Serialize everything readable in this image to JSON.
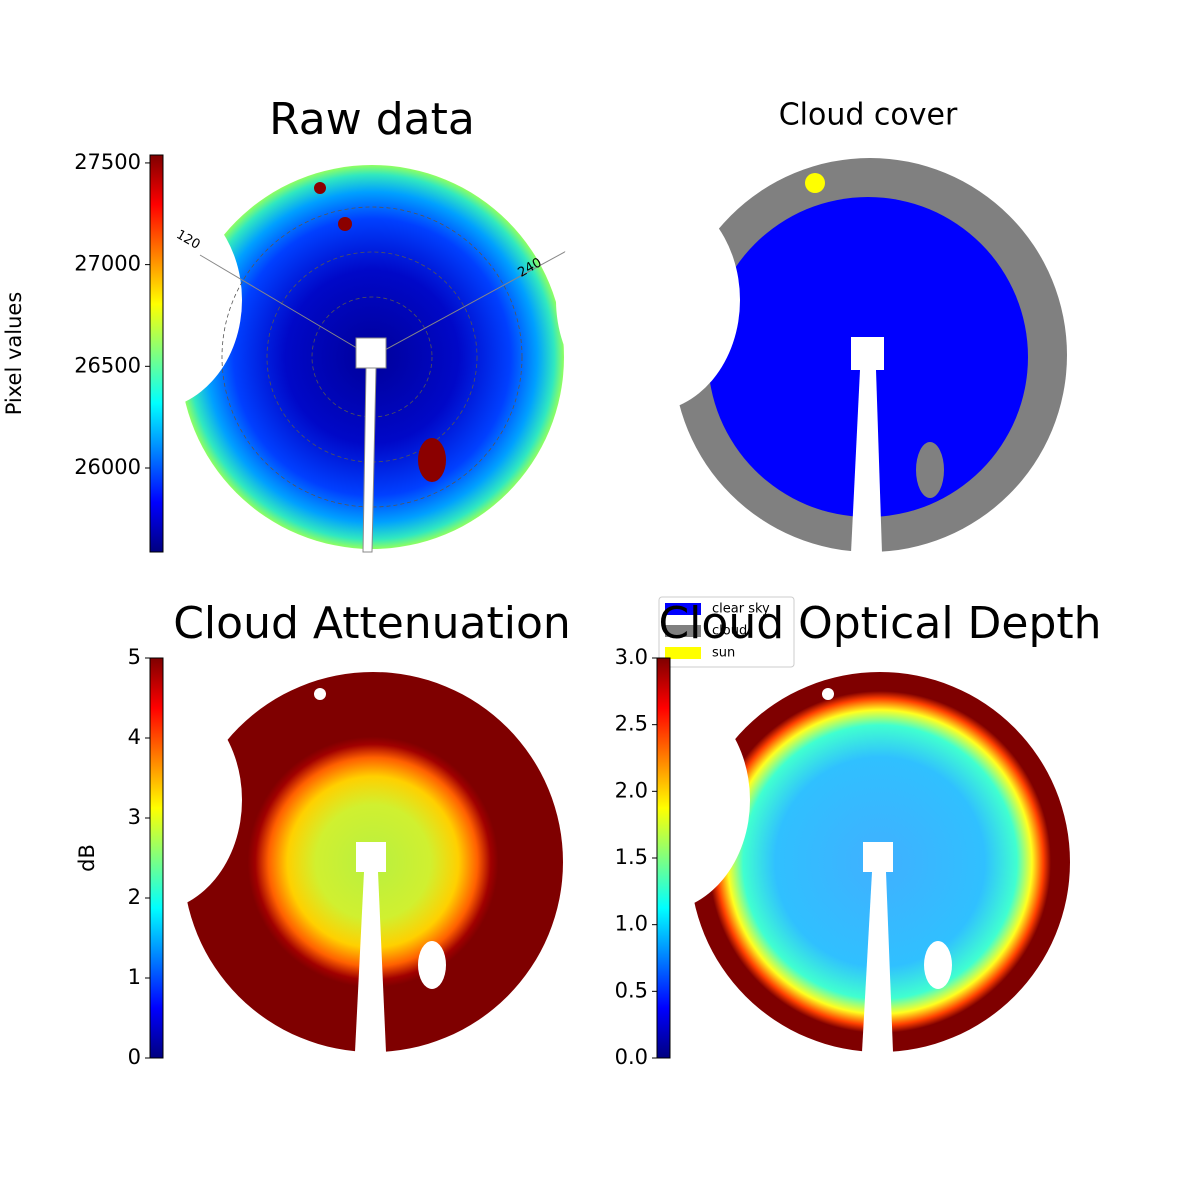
{
  "chart_data": [
    {
      "type": "heatmap",
      "title": "Raw data",
      "ylabel": "Pixel values",
      "colormap": "jet",
      "ylim": [
        25587,
        27539
      ],
      "yticks": [
        26000,
        26500,
        27000,
        27500
      ],
      "annotations": [
        "120",
        "240"
      ]
    },
    {
      "type": "categorical",
      "title": "Cloud cover",
      "series": [
        {
          "name": "clear sky",
          "color": "#0000ff"
        },
        {
          "name": "cloud",
          "color": "#808080"
        },
        {
          "name": "sun",
          "color": "#ffff00"
        }
      ]
    },
    {
      "type": "heatmap",
      "title": "Cloud Attenuation",
      "ylabel": "dB",
      "colormap": "jet",
      "ylim": [
        0,
        5
      ],
      "yticks": [
        0,
        1,
        2,
        3,
        4,
        5
      ]
    },
    {
      "type": "heatmap",
      "title": "Cloud Optical Depth",
      "colormap": "jet",
      "ylim": [
        0,
        3
      ],
      "yticks": [
        {
          "value": 0,
          "label": "0.0"
        },
        {
          "value": 0.5,
          "label": "0.5"
        },
        {
          "value": 1,
          "label": "1.0"
        },
        {
          "value": 1.5,
          "label": "1.5"
        },
        {
          "value": 2,
          "label": "2.0"
        },
        {
          "value": 2.5,
          "label": "2.5"
        },
        {
          "value": 3,
          "label": "3.0"
        }
      ]
    }
  ]
}
